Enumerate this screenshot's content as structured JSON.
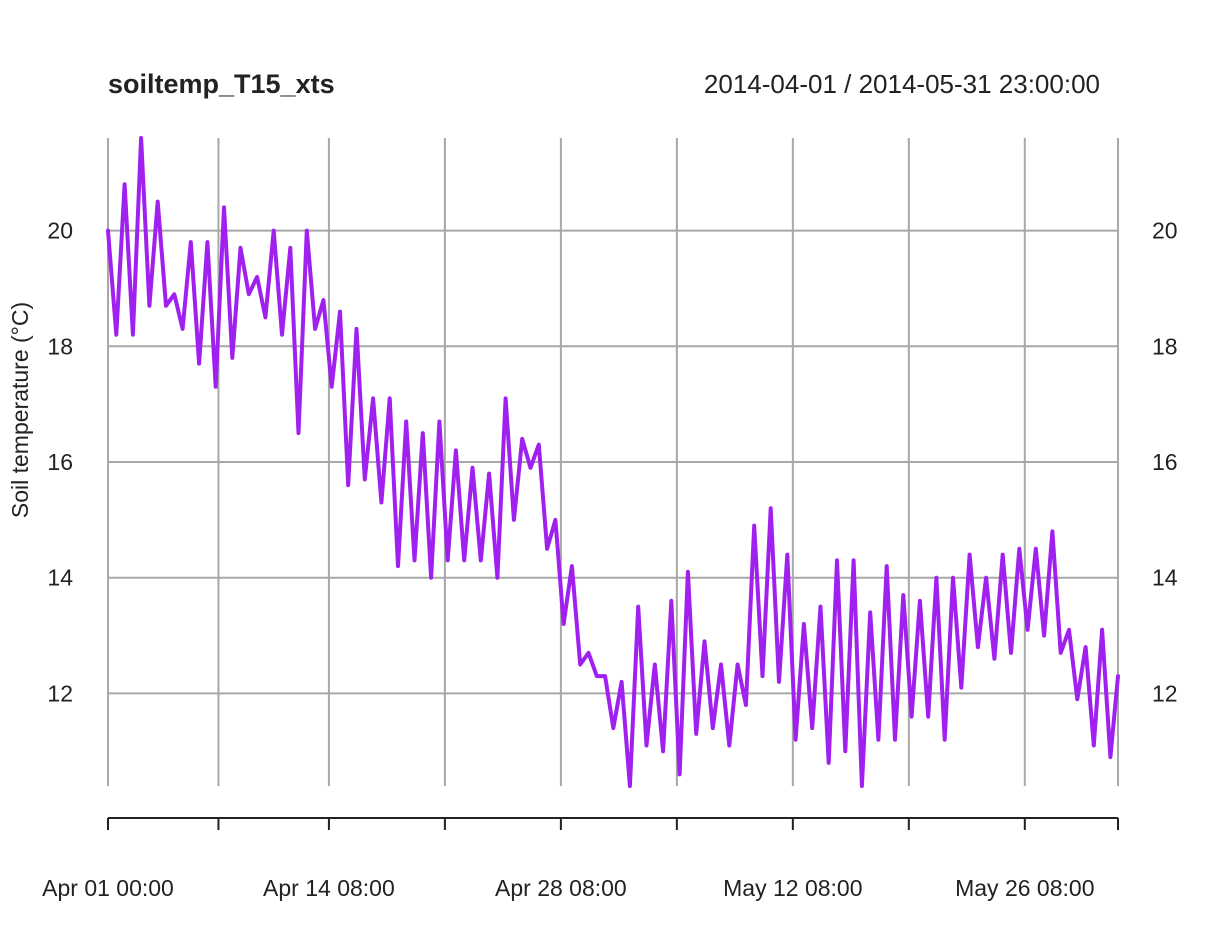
{
  "chart_data": {
    "type": "line",
    "title": "soiltemp_T15_xts",
    "subtitle": "2014-04-01 / 2014-05-31 23:00:00",
    "xlabel": "",
    "ylabel": "Soil temperature (°C)",
    "x_unit": "datetime (hourly)",
    "xlim": [
      "2014-04-01 00:00",
      "2014-05-31 23:00"
    ],
    "ylim": [
      10.4,
      21.6
    ],
    "grid": true,
    "legend": "none",
    "line_color": "#a020f0",
    "x_ticks": [
      {
        "date": "2014-04-01 00:00",
        "label": "Apr 01 00:00"
      },
      {
        "date": "2014-04-07 16:00",
        "label": ""
      },
      {
        "date": "2014-04-14 08:00",
        "label": "Apr 14 08:00"
      },
      {
        "date": "2014-04-21 08:00",
        "label": ""
      },
      {
        "date": "2014-04-28 08:00",
        "label": "Apr 28 08:00"
      },
      {
        "date": "2014-05-05 08:00",
        "label": ""
      },
      {
        "date": "2014-05-12 08:00",
        "label": "May 12 08:00"
      },
      {
        "date": "2014-05-19 08:00",
        "label": ""
      },
      {
        "date": "2014-05-26 08:00",
        "label": "May 26 08:00"
      },
      {
        "date": "2014-05-31 23:00",
        "label": ""
      }
    ],
    "y_ticks": [
      12,
      14,
      16,
      18,
      20
    ],
    "y_tick_labels": [
      "12",
      "14",
      "16",
      "18",
      "20"
    ],
    "series": [
      {
        "x": [
          "2014-04-01 00:00",
          "2014-04-01 12:00",
          "2014-04-02 00:00",
          "2014-04-02 12:00",
          "2014-04-03 00:00",
          "2014-04-03 12:00",
          "2014-04-04 00:00",
          "2014-04-04 12:00",
          "2014-04-05 00:00",
          "2014-04-05 12:00",
          "2014-04-06 00:00",
          "2014-04-06 12:00",
          "2014-04-07 00:00",
          "2014-04-07 12:00",
          "2014-04-08 00:00",
          "2014-04-08 12:00",
          "2014-04-09 00:00",
          "2014-04-09 12:00",
          "2014-04-10 00:00",
          "2014-04-10 12:00",
          "2014-04-11 00:00",
          "2014-04-11 12:00",
          "2014-04-12 00:00",
          "2014-04-12 12:00",
          "2014-04-13 00:00",
          "2014-04-13 12:00",
          "2014-04-14 00:00",
          "2014-04-14 12:00",
          "2014-04-15 00:00",
          "2014-04-15 12:00",
          "2014-04-16 00:00",
          "2014-04-16 12:00",
          "2014-04-17 00:00",
          "2014-04-17 12:00",
          "2014-04-18 00:00",
          "2014-04-18 12:00",
          "2014-04-19 00:00",
          "2014-04-19 12:00",
          "2014-04-20 00:00",
          "2014-04-20 12:00",
          "2014-04-21 00:00",
          "2014-04-21 12:00",
          "2014-04-22 00:00",
          "2014-04-22 12:00",
          "2014-04-23 00:00",
          "2014-04-23 12:00",
          "2014-04-24 00:00",
          "2014-04-24 12:00",
          "2014-04-25 00:00",
          "2014-04-25 12:00",
          "2014-04-26 00:00",
          "2014-04-26 12:00",
          "2014-04-27 00:00",
          "2014-04-27 12:00",
          "2014-04-28 00:00",
          "2014-04-28 12:00",
          "2014-04-29 00:00",
          "2014-04-29 12:00",
          "2014-04-30 00:00",
          "2014-04-30 12:00",
          "2014-05-01 00:00",
          "2014-05-01 12:00",
          "2014-05-02 00:00",
          "2014-05-02 12:00",
          "2014-05-03 00:00",
          "2014-05-03 12:00",
          "2014-05-04 00:00",
          "2014-05-04 12:00",
          "2014-05-05 00:00",
          "2014-05-05 12:00",
          "2014-05-06 00:00",
          "2014-05-06 12:00",
          "2014-05-07 00:00",
          "2014-05-07 12:00",
          "2014-05-08 00:00",
          "2014-05-08 12:00",
          "2014-05-09 00:00",
          "2014-05-09 12:00",
          "2014-05-10 00:00",
          "2014-05-10 12:00",
          "2014-05-11 00:00",
          "2014-05-11 12:00",
          "2014-05-12 00:00",
          "2014-05-12 12:00",
          "2014-05-13 00:00",
          "2014-05-13 12:00",
          "2014-05-14 00:00",
          "2014-05-14 12:00",
          "2014-05-15 00:00",
          "2014-05-15 12:00",
          "2014-05-16 00:00",
          "2014-05-16 12:00",
          "2014-05-17 00:00",
          "2014-05-17 12:00",
          "2014-05-18 00:00",
          "2014-05-18 12:00",
          "2014-05-19 00:00",
          "2014-05-19 12:00",
          "2014-05-20 00:00",
          "2014-05-20 12:00",
          "2014-05-21 00:00",
          "2014-05-21 12:00",
          "2014-05-22 00:00",
          "2014-05-22 12:00",
          "2014-05-23 00:00",
          "2014-05-23 12:00",
          "2014-05-24 00:00",
          "2014-05-24 12:00",
          "2014-05-25 00:00",
          "2014-05-25 12:00",
          "2014-05-26 00:00",
          "2014-05-26 12:00",
          "2014-05-27 00:00",
          "2014-05-27 12:00",
          "2014-05-28 00:00",
          "2014-05-28 12:00",
          "2014-05-29 00:00",
          "2014-05-29 12:00",
          "2014-05-30 00:00",
          "2014-05-30 12:00",
          "2014-05-31 00:00",
          "2014-05-31 12:00",
          "2014-05-31 23:00"
        ],
        "y": [
          20.0,
          18.2,
          20.8,
          18.2,
          21.6,
          18.7,
          20.5,
          18.7,
          18.9,
          18.3,
          19.8,
          17.7,
          19.8,
          17.3,
          20.4,
          17.8,
          19.7,
          18.9,
          19.2,
          18.5,
          20.0,
          18.2,
          19.7,
          16.5,
          20.0,
          18.3,
          18.8,
          17.3,
          18.6,
          15.6,
          18.3,
          15.7,
          17.1,
          15.3,
          17.1,
          14.2,
          16.7,
          14.3,
          16.5,
          14.0,
          16.7,
          14.3,
          16.2,
          14.3,
          15.9,
          14.3,
          15.8,
          14.0,
          17.1,
          15.0,
          16.4,
          15.9,
          16.3,
          14.5,
          15.0,
          13.2,
          14.2,
          12.5,
          12.7,
          12.3,
          12.3,
          11.4,
          12.2,
          10.4,
          13.5,
          11.1,
          12.5,
          11.0,
          13.6,
          10.6,
          14.1,
          11.3,
          12.9,
          11.4,
          12.5,
          11.1,
          12.5,
          11.8,
          14.9,
          12.3,
          15.2,
          12.2,
          14.4,
          11.2,
          13.2,
          11.4,
          13.5,
          10.8,
          14.3,
          11.0,
          14.3,
          10.4,
          13.4,
          11.2,
          14.2,
          11.2,
          13.7,
          11.6,
          13.6,
          11.6,
          14.0,
          11.2,
          14.0,
          12.1,
          14.4,
          12.8,
          14.0,
          12.6,
          14.4,
          12.7,
          14.5,
          13.1,
          14.5,
          13.0,
          14.8,
          12.7,
          13.1,
          11.9,
          12.8,
          11.1,
          13.1,
          10.9,
          12.3
        ]
      }
    ]
  }
}
